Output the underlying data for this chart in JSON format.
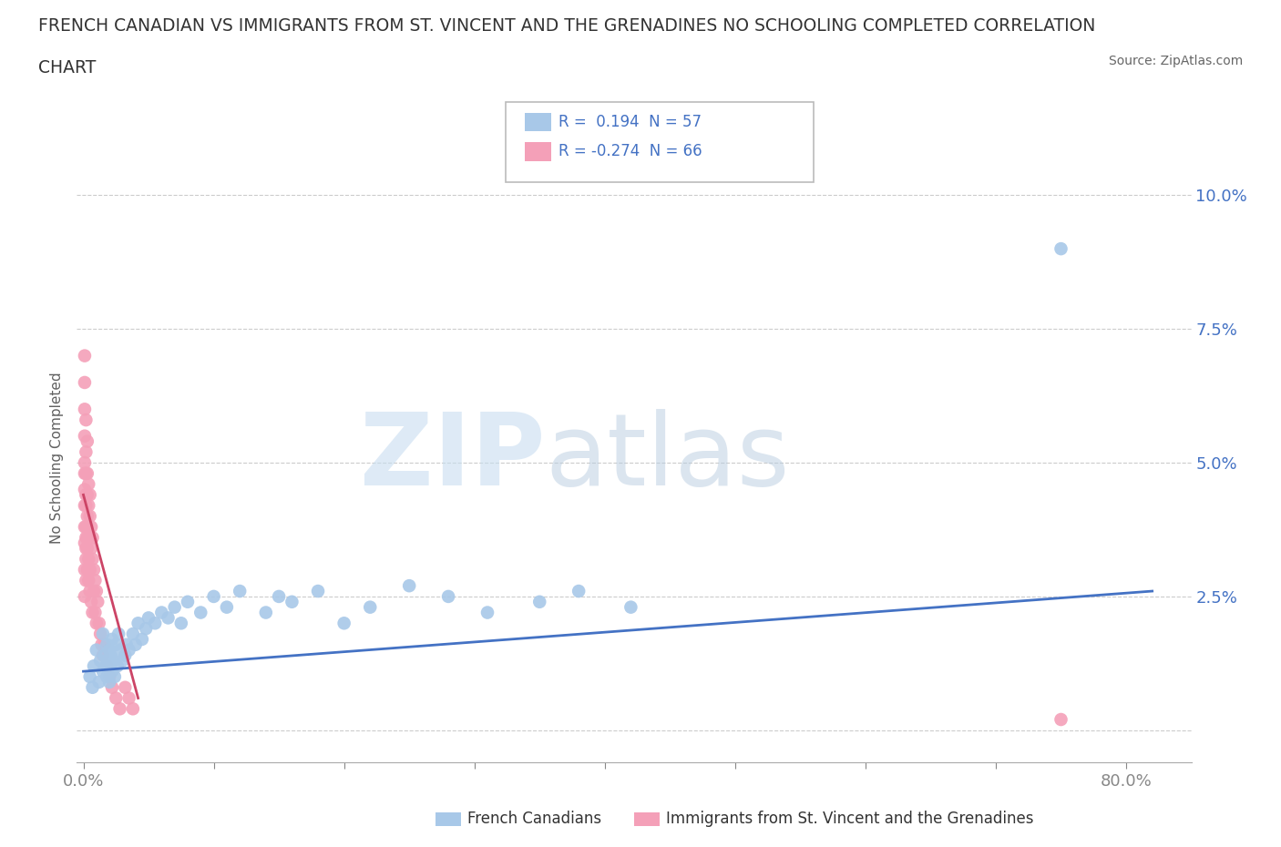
{
  "title_line1": "FRENCH CANADIAN VS IMMIGRANTS FROM ST. VINCENT AND THE GRENADINES NO SCHOOLING COMPLETED CORRELATION",
  "title_line2": "CHART",
  "source_text": "Source: ZipAtlas.com",
  "ylabel": "No Schooling Completed",
  "y_ticks": [
    0.0,
    0.025,
    0.05,
    0.075,
    0.1
  ],
  "y_tick_labels": [
    "",
    "2.5%",
    "5.0%",
    "7.5%",
    "10.0%"
  ],
  "x_ticks": [
    0.0,
    0.1,
    0.2,
    0.3,
    0.4,
    0.5,
    0.6,
    0.7,
    0.8
  ],
  "xlim": [
    -0.005,
    0.85
  ],
  "ylim": [
    -0.006,
    0.108
  ],
  "blue_R": 0.194,
  "blue_N": 57,
  "pink_R": -0.274,
  "pink_N": 66,
  "blue_color": "#a8c8e8",
  "pink_color": "#f4a0b8",
  "blue_line_color": "#4472c4",
  "pink_line_color": "#cc4466",
  "legend_label_blue": "French Canadians",
  "legend_label_pink": "Immigrants from St. Vincent and the Grenadines",
  "watermark_zip": "ZIP",
  "watermark_atlas": "atlas",
  "background_color": "#ffffff",
  "grid_color": "#cccccc",
  "title_color": "#333333",
  "blue_scatter_x": [
    0.005,
    0.007,
    0.008,
    0.01,
    0.012,
    0.013,
    0.015,
    0.015,
    0.016,
    0.017,
    0.018,
    0.018,
    0.019,
    0.02,
    0.02,
    0.021,
    0.022,
    0.022,
    0.023,
    0.024,
    0.025,
    0.026,
    0.027,
    0.028,
    0.03,
    0.032,
    0.033,
    0.035,
    0.038,
    0.04,
    0.042,
    0.045,
    0.048,
    0.05,
    0.055,
    0.06,
    0.065,
    0.07,
    0.075,
    0.08,
    0.09,
    0.1,
    0.11,
    0.12,
    0.14,
    0.15,
    0.16,
    0.18,
    0.2,
    0.22,
    0.25,
    0.28,
    0.31,
    0.35,
    0.38,
    0.42,
    0.75
  ],
  "blue_scatter_y": [
    0.01,
    0.008,
    0.012,
    0.015,
    0.009,
    0.013,
    0.011,
    0.018,
    0.014,
    0.012,
    0.016,
    0.01,
    0.013,
    0.015,
    0.009,
    0.014,
    0.011,
    0.017,
    0.013,
    0.01,
    0.016,
    0.012,
    0.018,
    0.015,
    0.013,
    0.014,
    0.016,
    0.015,
    0.018,
    0.016,
    0.02,
    0.017,
    0.019,
    0.021,
    0.02,
    0.022,
    0.021,
    0.023,
    0.02,
    0.024,
    0.022,
    0.025,
    0.023,
    0.026,
    0.022,
    0.025,
    0.024,
    0.026,
    0.02,
    0.023,
    0.027,
    0.025,
    0.022,
    0.024,
    0.026,
    0.023,
    0.09
  ],
  "pink_scatter_x": [
    0.001,
    0.001,
    0.001,
    0.001,
    0.001,
    0.001,
    0.001,
    0.001,
    0.001,
    0.001,
    0.002,
    0.002,
    0.002,
    0.002,
    0.002,
    0.002,
    0.002,
    0.002,
    0.002,
    0.003,
    0.003,
    0.003,
    0.003,
    0.003,
    0.003,
    0.003,
    0.004,
    0.004,
    0.004,
    0.004,
    0.004,
    0.005,
    0.005,
    0.005,
    0.005,
    0.006,
    0.006,
    0.006,
    0.007,
    0.007,
    0.007,
    0.008,
    0.008,
    0.009,
    0.009,
    0.01,
    0.01,
    0.011,
    0.012,
    0.013,
    0.014,
    0.015,
    0.016,
    0.018,
    0.02,
    0.022,
    0.025,
    0.028,
    0.032,
    0.035,
    0.038,
    0.75,
    0.001,
    0.001,
    0.002,
    0.003
  ],
  "pink_scatter_y": [
    0.042,
    0.038,
    0.045,
    0.035,
    0.05,
    0.03,
    0.055,
    0.025,
    0.06,
    0.048,
    0.038,
    0.044,
    0.032,
    0.048,
    0.036,
    0.042,
    0.028,
    0.052,
    0.034,
    0.04,
    0.036,
    0.044,
    0.03,
    0.048,
    0.034,
    0.038,
    0.042,
    0.028,
    0.046,
    0.032,
    0.036,
    0.04,
    0.026,
    0.044,
    0.03,
    0.038,
    0.024,
    0.034,
    0.036,
    0.022,
    0.032,
    0.03,
    0.026,
    0.028,
    0.022,
    0.026,
    0.02,
    0.024,
    0.02,
    0.018,
    0.016,
    0.014,
    0.016,
    0.012,
    0.01,
    0.008,
    0.006,
    0.004,
    0.008,
    0.006,
    0.004,
    0.002,
    0.07,
    0.065,
    0.058,
    0.054
  ]
}
